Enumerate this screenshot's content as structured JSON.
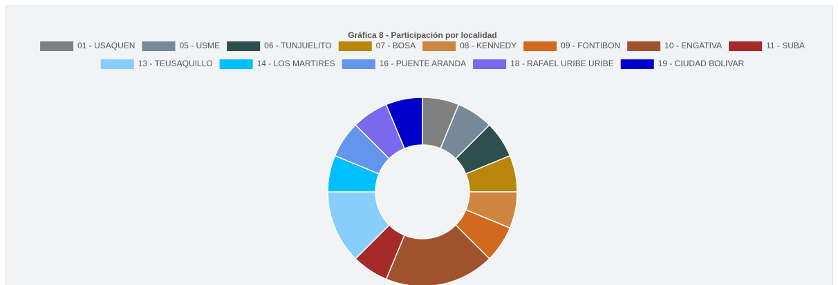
{
  "chart_data": {
    "type": "donut",
    "title": "Gráfica 8 - Participación por localidad",
    "categories": [
      "01 - USAQUEN",
      "05 - USME",
      "06 - TUNJUELITO",
      "07 - BOSA",
      "08 - KENNEDY",
      "09 - FONTIBON",
      "10 - ENGATIVA",
      "11 - SUBA",
      "13 - TEUSAQUILLO",
      "14 - LOS MARTIRES",
      "16 - PUENTE ARANDA",
      "18 - RAFAEL URIBE URIBE",
      "19 - CIUDAD BOLIVAR"
    ],
    "values": [
      1,
      1,
      1,
      1,
      1,
      1,
      3,
      1,
      2,
      1,
      1,
      1,
      1
    ],
    "colors": [
      "#808080",
      "#778899",
      "#2f4f4f",
      "#b8860b",
      "#cd853f",
      "#d2691e",
      "#a0522d",
      "#a52a2a",
      "#87cefa",
      "#00bfff",
      "#6495ed",
      "#7b68ee",
      "#0000cd"
    ],
    "legend": "top"
  }
}
